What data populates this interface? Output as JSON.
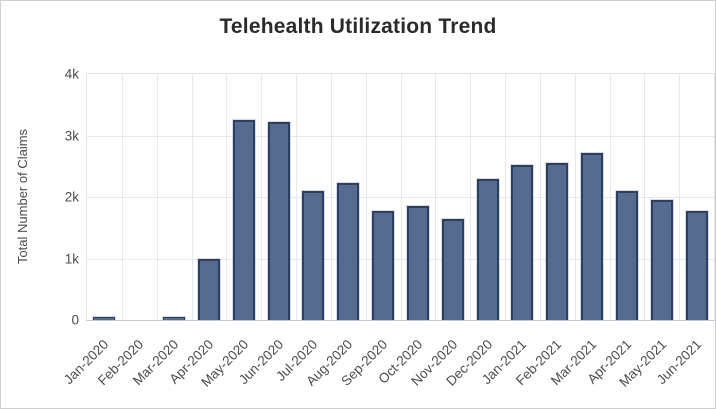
{
  "chart_data": {
    "type": "bar",
    "title": "Telehealth Utilization Trend",
    "ylabel": "Total Number of Claims",
    "xlabel": "",
    "categories": [
      "Jan-2020",
      "Feb-2020",
      "Mar-2020",
      "Apr-2020",
      "May-2020",
      "Jun-2020",
      "Jul-2020",
      "Aug-2020",
      "Sep-2020",
      "Oct-2020",
      "Nov-2020",
      "Dec-2020",
      "Jan-2021",
      "Feb-2021",
      "Mar-2021",
      "Apr-2021",
      "May-2021",
      "Jun-2021"
    ],
    "values": [
      45,
      0,
      50,
      1000,
      3250,
      3220,
      2100,
      2230,
      1780,
      1850,
      1640,
      2300,
      2520,
      2550,
      2720,
      2090,
      1950,
      1780
    ],
    "ylim": [
      0,
      4000
    ],
    "yticks": [
      {
        "value": 0,
        "label": "0"
      },
      {
        "value": 1000,
        "label": "1k"
      },
      {
        "value": 2000,
        "label": "2k"
      },
      {
        "value": 3000,
        "label": "3k"
      },
      {
        "value": 4000,
        "label": "4k"
      }
    ],
    "grid": true,
    "legend": "none",
    "colors": {
      "bar_fill": "#566b8e",
      "bar_border": "#2b3f62",
      "gridline": "#e8e8e8",
      "axis_text": "#4c4c4c",
      "title_text": "#2b2b2b"
    }
  }
}
